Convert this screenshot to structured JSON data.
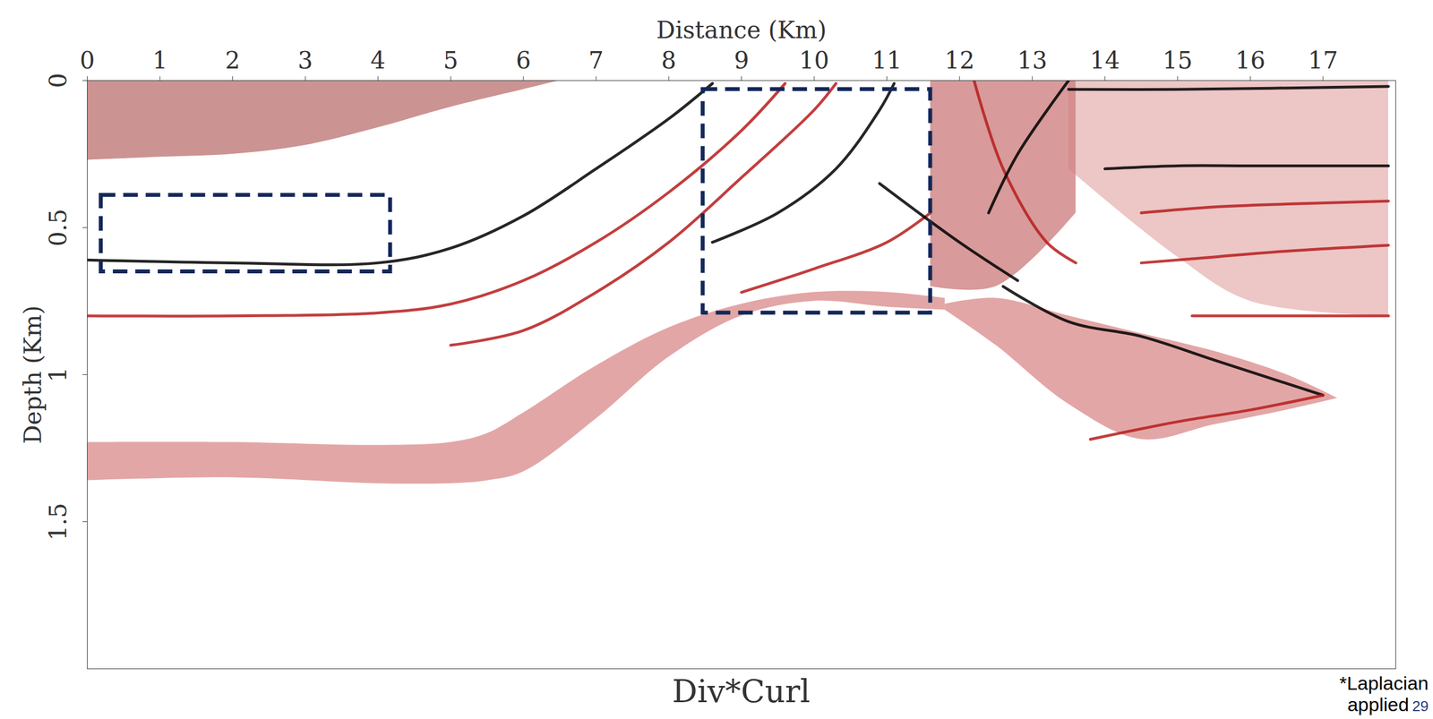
{
  "chart_data": {
    "type": "image",
    "caption": "Div*Curl",
    "note": "*Laplacian applied",
    "page_number": 29,
    "x_label": "Distance (Km)",
    "y_label": "Depth (Km)",
    "xlim": [
      0,
      18
    ],
    "xticks": [
      0,
      1,
      2,
      3,
      4,
      5,
      6,
      7,
      8,
      9,
      10,
      11,
      12,
      13,
      14,
      15,
      16,
      17
    ],
    "ylim": [
      0,
      2
    ],
    "yticks": [
      0,
      0.5,
      1,
      1.5
    ],
    "areas": [
      {
        "color": "#8e1010",
        "x": [
          0,
          1,
          2,
          3,
          4,
          5,
          6,
          6.5
        ],
        "y1": [
          0,
          0,
          0,
          0,
          0,
          0,
          0,
          0
        ],
        "y2": [
          0.27,
          0.26,
          0.25,
          0.22,
          0.16,
          0.09,
          0.03,
          0
        ]
      },
      {
        "color": "#c23a3a",
        "x": [
          0,
          2,
          4,
          5,
          5.5,
          6,
          7,
          8,
          9,
          10,
          11,
          11.8
        ],
        "y1": [
          1.23,
          1.23,
          1.24,
          1.23,
          1.2,
          1.13,
          0.97,
          0.84,
          0.76,
          0.72,
          0.72,
          0.74
        ],
        "y2": [
          1.36,
          1.35,
          1.37,
          1.37,
          1.36,
          1.33,
          1.15,
          0.94,
          0.8,
          0.75,
          0.77,
          0.78
        ]
      },
      {
        "color": "#c23a3a",
        "x": [
          11.8,
          12.5,
          13.5,
          14.5,
          15.5,
          16.5,
          17.2
        ],
        "y1": [
          0.76,
          0.74,
          0.8,
          0.86,
          0.92,
          1.0,
          1.08
        ],
        "y2": [
          0.78,
          0.9,
          1.1,
          1.22,
          1.17,
          1.12,
          1.08
        ]
      },
      {
        "color": "#a82020",
        "x": [
          11.6,
          12.5,
          13.6
        ],
        "y1": [
          0,
          0,
          0
        ],
        "y2": [
          0.7,
          0.7,
          0.45
        ]
      },
      {
        "color": "#d88080",
        "x": [
          13.5,
          15,
          16,
          17.9
        ],
        "y1": [
          0,
          0,
          0,
          0
        ],
        "y2": [
          0.3,
          0.6,
          0.75,
          0.8
        ]
      }
    ],
    "reflectors": [
      {
        "color": "#000000",
        "x": [
          0,
          2,
          4,
          5,
          6,
          7,
          8,
          8.6
        ],
        "y": [
          0.61,
          0.62,
          0.62,
          0.57,
          0.46,
          0.3,
          0.13,
          0.01
        ]
      },
      {
        "color": "#b71c1c",
        "x": [
          0,
          2,
          4,
          5,
          6,
          7,
          8,
          9,
          9.6
        ],
        "y": [
          0.8,
          0.8,
          0.79,
          0.76,
          0.68,
          0.55,
          0.38,
          0.17,
          0.01
        ]
      },
      {
        "color": "#b71c1c",
        "x": [
          5,
          6,
          7,
          8,
          9,
          10,
          10.3
        ],
        "y": [
          0.9,
          0.85,
          0.72,
          0.55,
          0.33,
          0.1,
          0.01
        ]
      },
      {
        "color": "#000000",
        "x": [
          8.6,
          9.5,
          10.3,
          10.9,
          11.1
        ],
        "y": [
          0.55,
          0.45,
          0.3,
          0.1,
          0.01
        ]
      },
      {
        "color": "#b71c1c",
        "x": [
          9,
          10,
          11,
          11.6
        ],
        "y": [
          0.72,
          0.64,
          0.55,
          0.45
        ]
      },
      {
        "color": "#000000",
        "x": [
          10.9,
          12,
          12.8
        ],
        "y": [
          0.35,
          0.55,
          0.68
        ]
      },
      {
        "color": "#000000",
        "x": [
          12.6,
          13.5,
          14.5,
          15.5,
          17
        ],
        "y": [
          0.7,
          0.82,
          0.87,
          0.95,
          1.07
        ]
      },
      {
        "color": "#b71c1c",
        "x": [
          13.8,
          15,
          16,
          17
        ],
        "y": [
          1.22,
          1.16,
          1.12,
          1.07
        ]
      },
      {
        "color": "#000000",
        "x": [
          14,
          15,
          16,
          17.9
        ],
        "y": [
          0.3,
          0.29,
          0.29,
          0.29
        ]
      },
      {
        "color": "#b71c1c",
        "x": [
          14.5,
          15.5,
          16.5,
          17.9
        ],
        "y": [
          0.45,
          0.43,
          0.42,
          0.41
        ]
      },
      {
        "color": "#b71c1c",
        "x": [
          14.5,
          15.5,
          16.5,
          17.9
        ],
        "y": [
          0.62,
          0.6,
          0.58,
          0.56
        ]
      },
      {
        "color": "#b71c1c",
        "x": [
          15.2,
          16.5,
          17.9
        ],
        "y": [
          0.8,
          0.8,
          0.8
        ]
      },
      {
        "color": "#000000",
        "x": [
          13.5,
          15,
          17.9
        ],
        "y": [
          0.03,
          0.03,
          0.02
        ]
      },
      {
        "color": "#b71c1c",
        "x": [
          12.2,
          12.6,
          13.2,
          13.6
        ],
        "y": [
          0,
          0.3,
          0.55,
          0.62
        ]
      },
      {
        "color": "#000000",
        "x": [
          13.5,
          12.8,
          12.4
        ],
        "y": [
          0,
          0.25,
          0.45
        ]
      }
    ],
    "boxes": [
      {
        "color": "#14285a",
        "line_style": "dashed",
        "x1": 0.19,
        "x2": 4.17,
        "y1": 0.39,
        "y2": 0.65
      },
      {
        "color": "#14285a",
        "line_style": "dashed",
        "x1": 8.47,
        "x2": 11.6,
        "y1": 0.03,
        "y2": 0.79
      }
    ]
  }
}
